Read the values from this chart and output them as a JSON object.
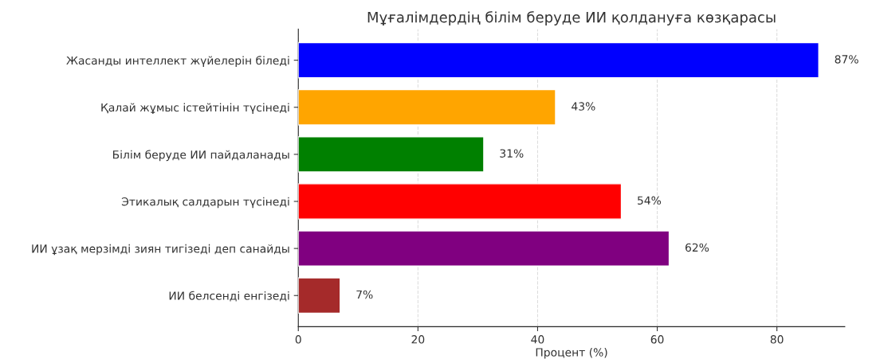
{
  "chart_data": {
    "type": "bar",
    "orientation": "horizontal",
    "title": "Мұғалімдердің білім беруде ИИ қолдануға көзқарасы",
    "xlabel": "Процент (%)",
    "categories": [
      "Жасанды интеллект жүйелерін біледі",
      "Қалай жұмыс істейтінін түсінеді",
      "Білім беруде ИИ пайдаланады",
      "Этикалық салдарын түсінеді",
      "ИИ ұзақ мерзімді зиян тигізеді деп санайды",
      "ИИ белсенді енгізеді"
    ],
    "values": [
      87,
      43,
      31,
      54,
      62,
      7
    ],
    "colors": [
      "#0000ff",
      "#ffa500",
      "#008000",
      "#ff0000",
      "#800080",
      "#a52a2a"
    ],
    "value_labels": [
      "87%",
      "43%",
      "31%",
      "54%",
      "62%",
      "7%"
    ],
    "xlim": [
      0,
      91.35
    ],
    "xticks": [
      0,
      20,
      40,
      60,
      80
    ],
    "grid": "x"
  }
}
